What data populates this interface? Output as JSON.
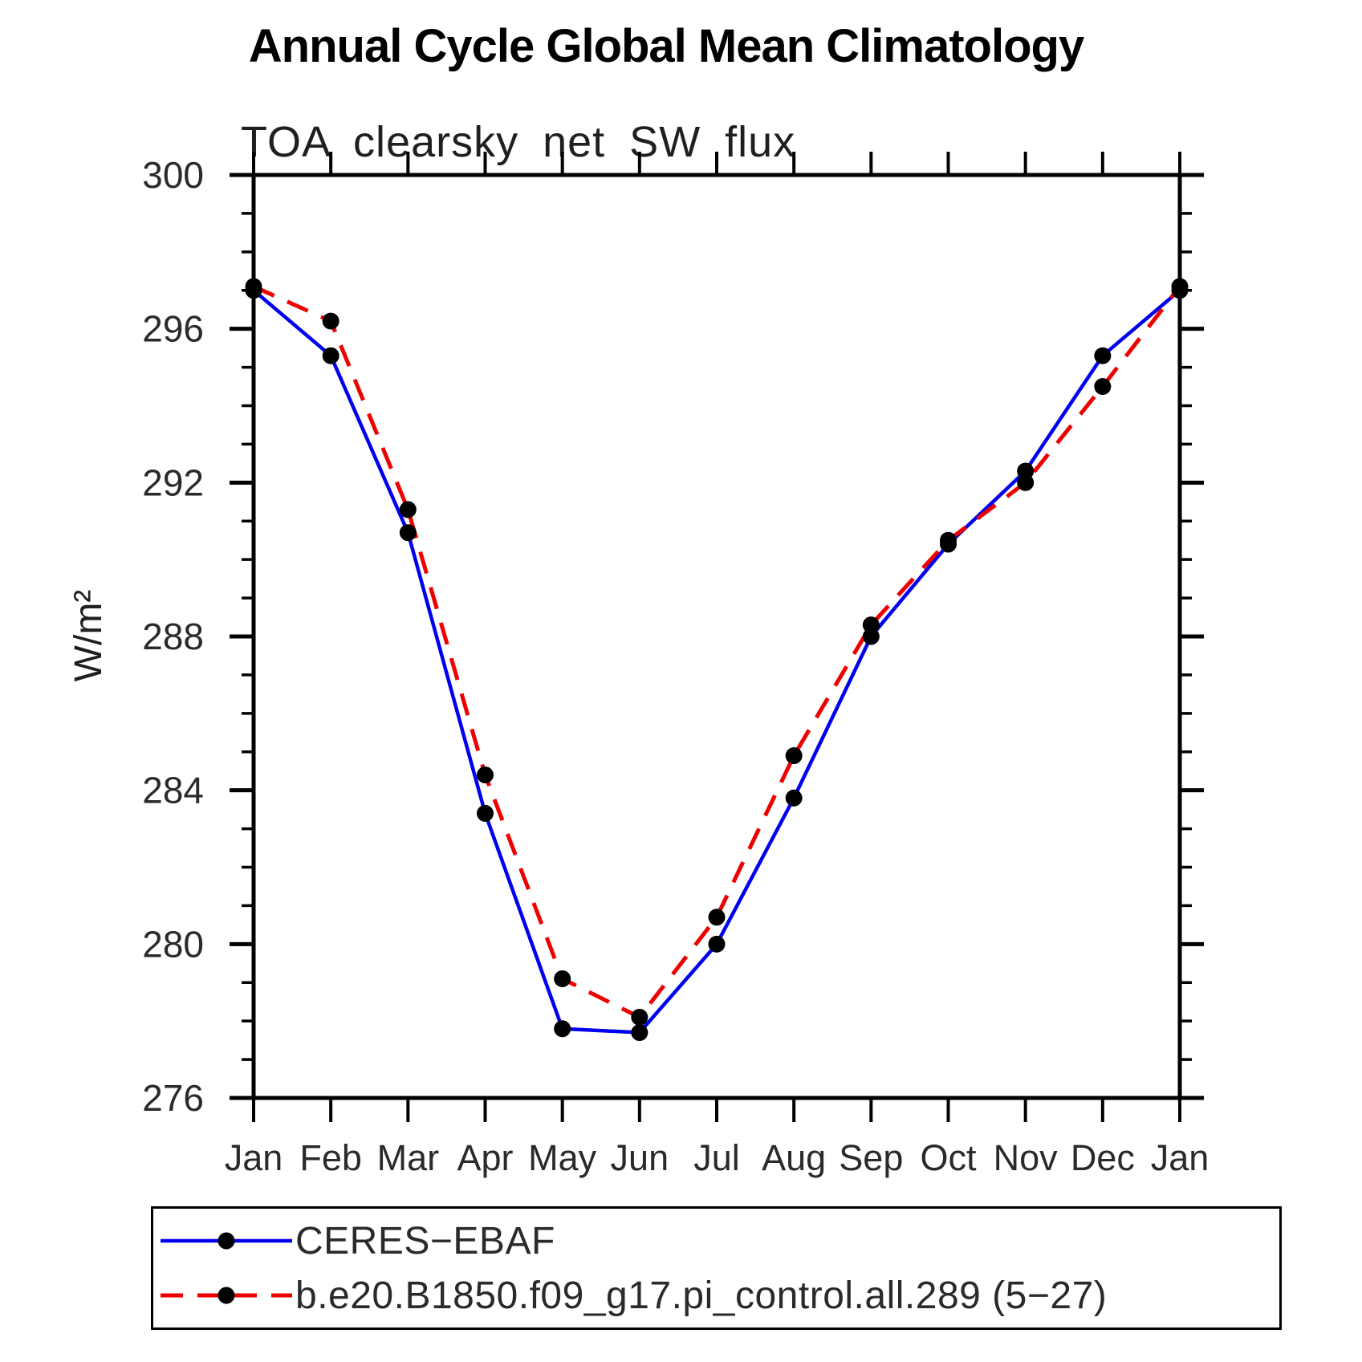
{
  "chart": {
    "title": "Annual Cycle Global Mean Climatology",
    "subtitle": "TOA clearsky net SW flux",
    "ylabel": "W/m²"
  },
  "chart_data": {
    "type": "line",
    "categories": [
      "Jan",
      "Feb",
      "Mar",
      "Apr",
      "May",
      "Jun",
      "Jul",
      "Aug",
      "Sep",
      "Oct",
      "Nov",
      "Dec",
      "Jan"
    ],
    "series": [
      {
        "name": "CERES−EBAF",
        "color": "#0000ee",
        "line_style": "solid",
        "values": [
          297.0,
          295.3,
          290.7,
          283.4,
          277.8,
          277.7,
          280.0,
          283.8,
          288.0,
          290.4,
          292.3,
          295.3,
          297.0
        ]
      },
      {
        "name": "b.e20.B1850.f09_g17.pi_control.all.289 (5−27)",
        "color": "#ee0000",
        "line_style": "dashed",
        "values": [
          297.1,
          296.2,
          291.3,
          284.4,
          279.1,
          278.1,
          280.7,
          284.9,
          288.3,
          290.5,
          292.0,
          294.5,
          297.1
        ]
      }
    ],
    "ylim": [
      276,
      300
    ],
    "yticks_major": [
      276,
      280,
      284,
      288,
      292,
      296,
      300
    ],
    "ytick_minor_step": 1,
    "ytick_major_step": 4,
    "marker": "filled-circle",
    "marker_color": "#000000",
    "grid": "off",
    "legend_position": "bottom-left"
  }
}
